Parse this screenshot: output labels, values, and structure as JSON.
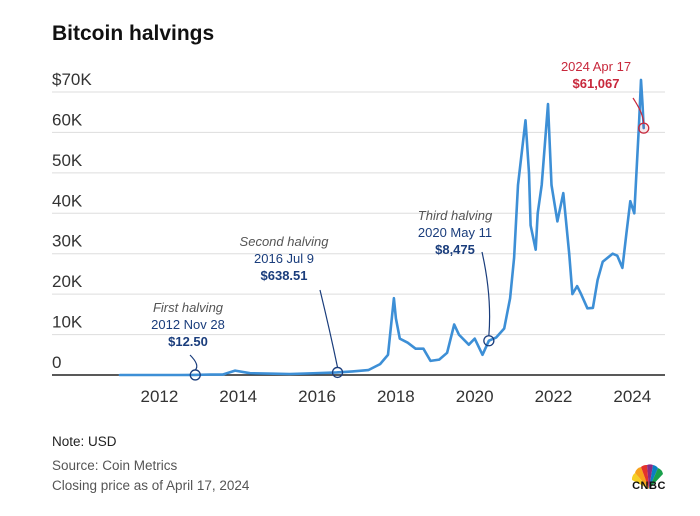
{
  "title": "Bitcoin halvings",
  "footer": {
    "note": "Note: USD",
    "source": "Source: Coin Metrics",
    "closing": "Closing price as of April 17, 2024"
  },
  "logo": {
    "text": "CNBC",
    "icon": "cnbc-peacock-icon"
  },
  "colors": {
    "line": "#3d8fd6",
    "annotation": "#1a3d7c",
    "highlight": "#c8283c",
    "grid": "#dddddd"
  },
  "chart_data": {
    "type": "line",
    "title": "Bitcoin halvings",
    "xlabel": "",
    "ylabel": "",
    "x_ticks": [
      "2012",
      "2014",
      "2016",
      "2018",
      "2020",
      "2022",
      "2024"
    ],
    "y_ticks": [
      "0",
      "10K",
      "20K",
      "30K",
      "40K",
      "50K",
      "60K",
      "$70K"
    ],
    "ylim": [
      0,
      70000
    ],
    "xlim": [
      2011.0,
      2024.5
    ],
    "grid": true,
    "series": [
      {
        "values": [
          [
            2011.0,
            0.3
          ],
          [
            2011.4,
            8
          ],
          [
            2011.9,
            3
          ],
          [
            2012.5,
            7
          ],
          [
            2012.9,
            12.5
          ],
          [
            2013.3,
            120
          ],
          [
            2013.6,
            100
          ],
          [
            2013.92,
            1100
          ],
          [
            2014.3,
            450
          ],
          [
            2014.9,
            320
          ],
          [
            2015.3,
            240
          ],
          [
            2015.9,
            430
          ],
          [
            2016.5,
            638.51
          ],
          [
            2016.9,
            900
          ],
          [
            2017.3,
            1200
          ],
          [
            2017.6,
            2700
          ],
          [
            2017.8,
            5000
          ],
          [
            2017.95,
            19000
          ],
          [
            2018.0,
            14000
          ],
          [
            2018.1,
            9000
          ],
          [
            2018.3,
            8000
          ],
          [
            2018.5,
            6500
          ],
          [
            2018.7,
            6500
          ],
          [
            2018.88,
            3500
          ],
          [
            2019.1,
            3800
          ],
          [
            2019.3,
            5500
          ],
          [
            2019.48,
            12500
          ],
          [
            2019.6,
            10000
          ],
          [
            2019.85,
            7500
          ],
          [
            2020.0,
            9000
          ],
          [
            2020.2,
            5000
          ],
          [
            2020.36,
            8475
          ],
          [
            2020.55,
            9300
          ],
          [
            2020.75,
            11500
          ],
          [
            2020.9,
            19000
          ],
          [
            2021.0,
            29000
          ],
          [
            2021.1,
            47000
          ],
          [
            2021.29,
            63000
          ],
          [
            2021.38,
            50000
          ],
          [
            2021.42,
            37000
          ],
          [
            2021.55,
            31000
          ],
          [
            2021.6,
            40000
          ],
          [
            2021.7,
            47000
          ],
          [
            2021.86,
            67000
          ],
          [
            2021.95,
            47000
          ],
          [
            2022.1,
            38000
          ],
          [
            2022.25,
            45000
          ],
          [
            2022.4,
            30000
          ],
          [
            2022.48,
            20000
          ],
          [
            2022.6,
            22000
          ],
          [
            2022.7,
            20000
          ],
          [
            2022.86,
            16500
          ],
          [
            2023.0,
            16600
          ],
          [
            2023.12,
            23500
          ],
          [
            2023.25,
            28000
          ],
          [
            2023.5,
            30000
          ],
          [
            2023.62,
            29500
          ],
          [
            2023.75,
            26500
          ],
          [
            2023.85,
            35000
          ],
          [
            2023.95,
            43000
          ],
          [
            2024.05,
            40000
          ],
          [
            2024.17,
            62000
          ],
          [
            2024.22,
            73000
          ],
          [
            2024.26,
            67000
          ],
          [
            2024.29,
            61067
          ]
        ]
      }
    ],
    "annotations": [
      {
        "label": "First halving",
        "date": "2012 Nov 28",
        "value": "$12.50",
        "x": 2012.91,
        "y": 12.5
      },
      {
        "label": "Second halving",
        "date": "2016 Jul 9",
        "value": "$638.51",
        "x": 2016.52,
        "y": 638.51
      },
      {
        "label": "Third halving",
        "date": "2020 May 11",
        "value": "$8,475",
        "x": 2020.36,
        "y": 8475
      },
      {
        "label": "",
        "date": "2024 Apr 17",
        "value": "$61,067",
        "x": 2024.29,
        "y": 61067
      }
    ]
  }
}
